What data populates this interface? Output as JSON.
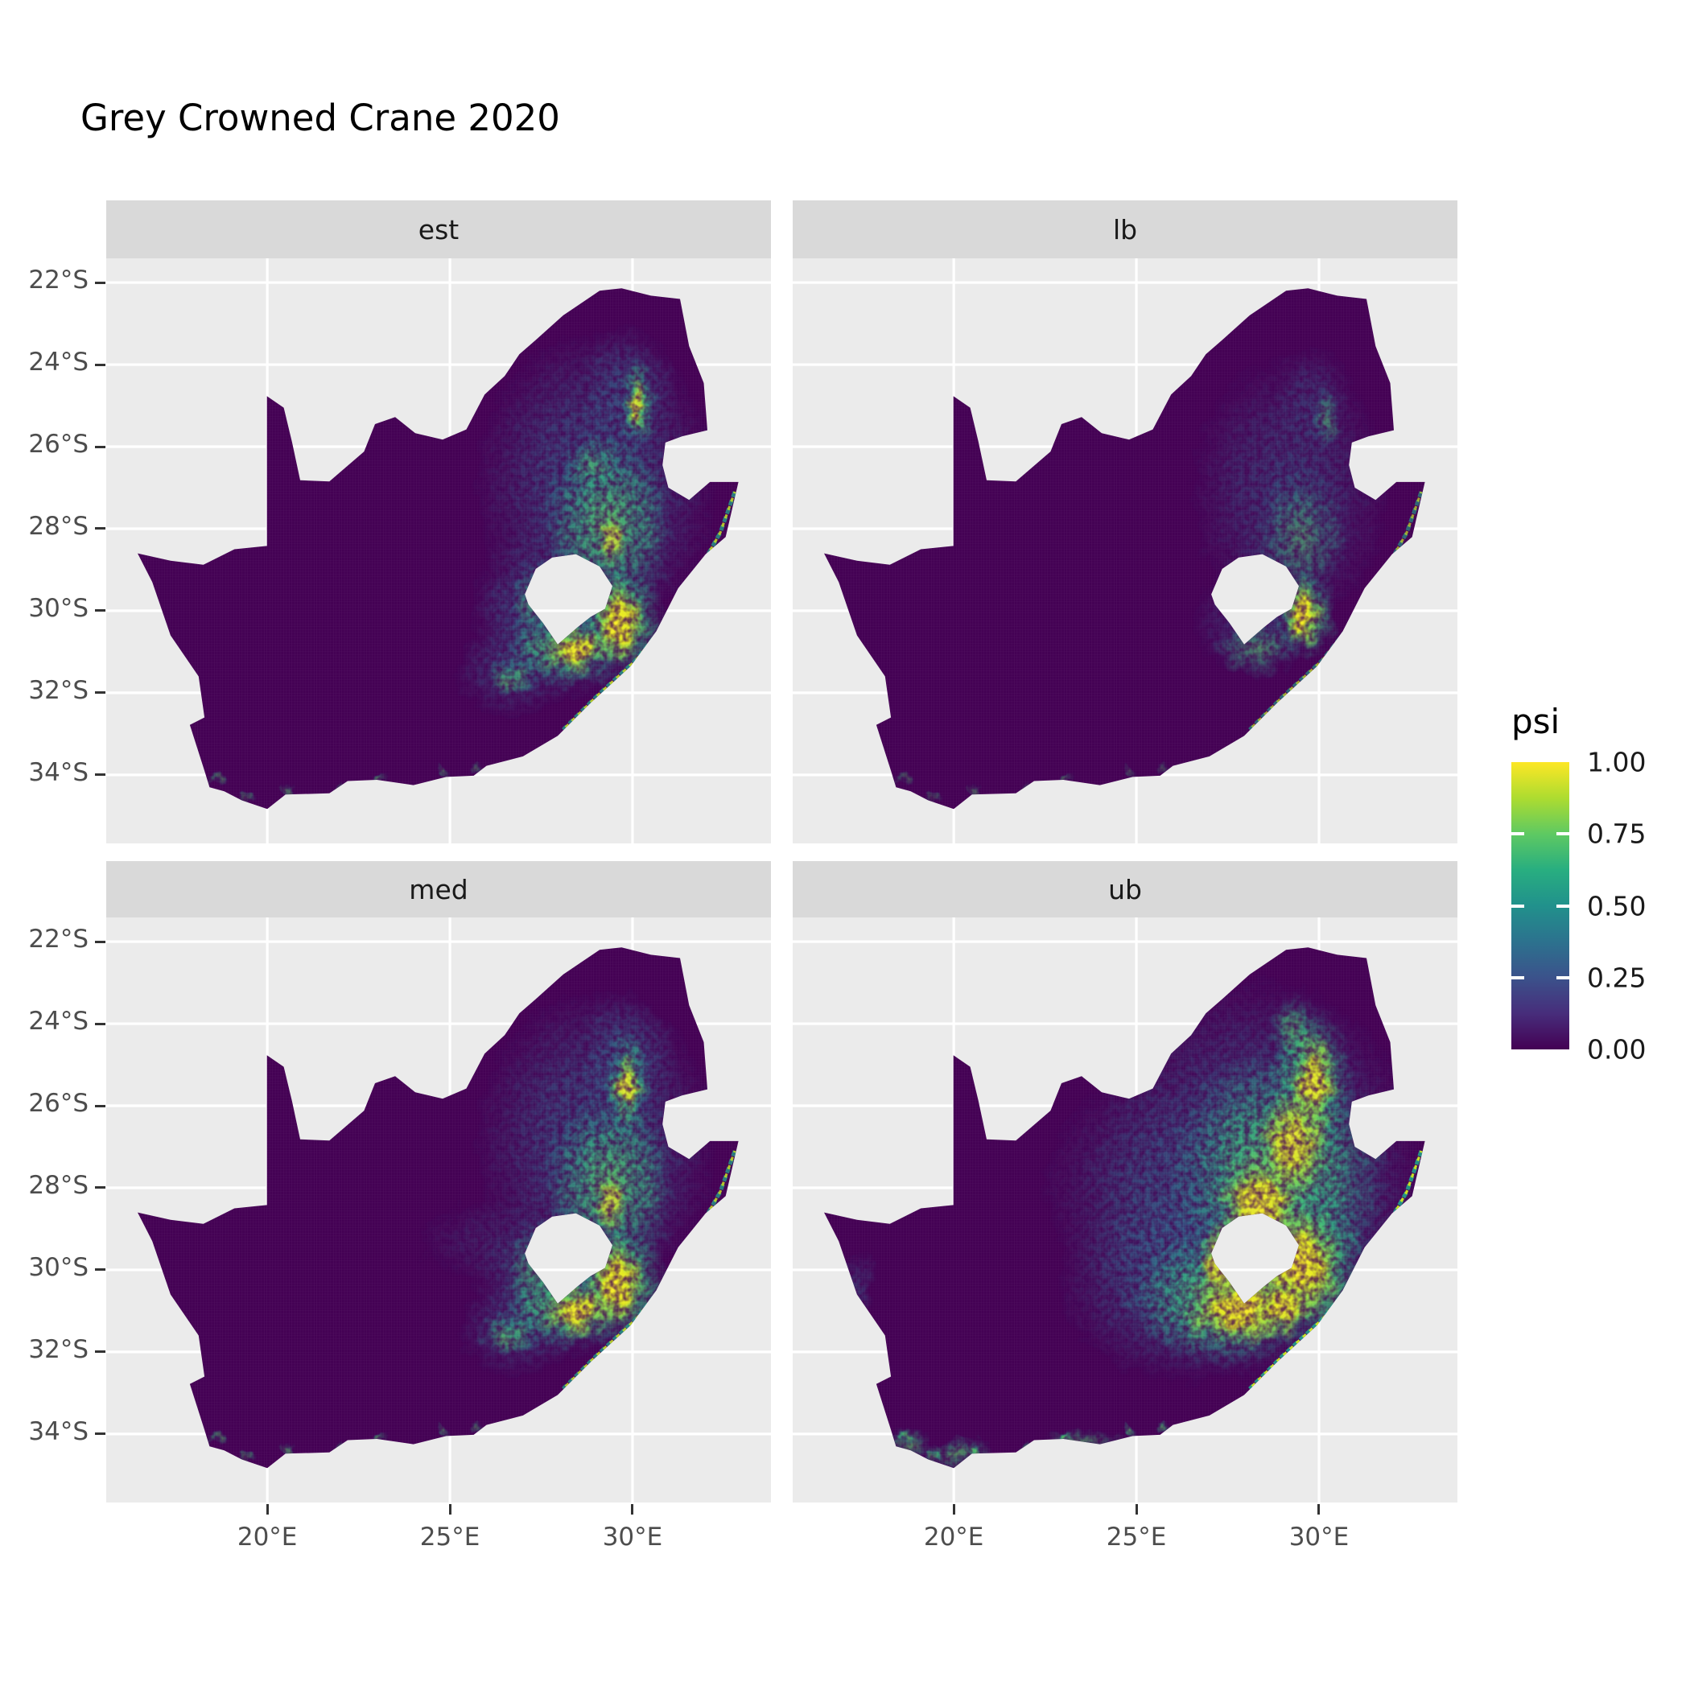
{
  "title": "Grey Crowned Crane 2020",
  "chart_data": {
    "type": "heatmap",
    "title": "Grey Crowned Crane 2020",
    "subtitle": "",
    "facets": [
      "est",
      "lb",
      "med",
      "ub"
    ],
    "legend": {
      "title": "psi",
      "position": "right",
      "tick_values": [
        1.0,
        0.75,
        0.5,
        0.25,
        0.0
      ],
      "tick_labels": [
        "1.00",
        "0.75",
        "0.50",
        "0.25",
        "0.00"
      ],
      "colormap": "viridis",
      "range": [
        0,
        1
      ]
    },
    "x_axis": {
      "tick_labels": [
        "20°E",
        "25°E",
        "30°E"
      ],
      "tick_values": [
        20,
        25,
        30
      ]
    },
    "y_axis": {
      "tick_labels": [
        "22°S",
        "24°S",
        "26°S",
        "28°S",
        "30°S",
        "32°S",
        "34°S"
      ],
      "tick_values": [
        -22,
        -24,
        -26,
        -28,
        -30,
        -32,
        -34
      ]
    },
    "extent": {
      "lon": [
        15.59,
        33.79
      ],
      "lat": [
        -35.67,
        -21.41
      ]
    },
    "grid": true,
    "colors": {
      "page_bg": "#FFFFFF",
      "panel_bg": "#EBEBEB",
      "strip_bg": "#D9D9D9",
      "gridline": "#FFFFFF",
      "raster_base": "#440154",
      "axis_text": "#4D4D4D",
      "strip_text": "#1A1A1A",
      "title_text": "#000000",
      "viridis_stops": [
        "#440154",
        "#472D7B",
        "#3B528B",
        "#2C728E",
        "#21918C",
        "#28AE80",
        "#5EC962",
        "#ADDC30",
        "#FDE725"
      ]
    },
    "map": {
      "region": "South Africa occupancy raster (psi), Lesotho and Eswatini shown as holes",
      "outline_lonlat": [
        [
          16.45,
          -28.6
        ],
        [
          17.35,
          -28.78
        ],
        [
          18.25,
          -28.88
        ],
        [
          19.1,
          -28.5
        ],
        [
          19.99,
          -28.42
        ],
        [
          19.99,
          -24.77
        ],
        [
          20.45,
          -25.05
        ],
        [
          20.68,
          -25.9
        ],
        [
          20.9,
          -26.82
        ],
        [
          21.7,
          -26.85
        ],
        [
          22.65,
          -26.12
        ],
        [
          22.95,
          -25.45
        ],
        [
          23.5,
          -25.28
        ],
        [
          24.05,
          -25.67
        ],
        [
          24.8,
          -25.83
        ],
        [
          25.45,
          -25.58
        ],
        [
          25.95,
          -24.73
        ],
        [
          26.5,
          -24.28
        ],
        [
          26.9,
          -23.75
        ],
        [
          27.35,
          -23.4
        ],
        [
          28.1,
          -22.8
        ],
        [
          29.1,
          -22.2
        ],
        [
          29.7,
          -22.14
        ],
        [
          30.5,
          -22.32
        ],
        [
          31.3,
          -22.4
        ],
        [
          31.55,
          -23.55
        ],
        [
          31.95,
          -24.45
        ],
        [
          32.05,
          -25.6
        ],
        [
          31.35,
          -25.75
        ],
        [
          30.9,
          -25.9
        ],
        [
          30.82,
          -26.45
        ],
        [
          30.98,
          -27.0
        ],
        [
          31.55,
          -27.3
        ],
        [
          32.12,
          -26.86
        ],
        [
          32.9,
          -26.86
        ],
        [
          32.55,
          -28.2
        ],
        [
          32.0,
          -28.62
        ],
        [
          31.25,
          -29.45
        ],
        [
          30.65,
          -30.5
        ],
        [
          29.95,
          -31.35
        ],
        [
          28.85,
          -32.25
        ],
        [
          27.95,
          -33.05
        ],
        [
          27.0,
          -33.55
        ],
        [
          26.0,
          -33.78
        ],
        [
          25.65,
          -34.02
        ],
        [
          24.9,
          -34.05
        ],
        [
          24.0,
          -34.25
        ],
        [
          23.0,
          -34.12
        ],
        [
          22.2,
          -34.15
        ],
        [
          21.7,
          -34.45
        ],
        [
          20.5,
          -34.48
        ],
        [
          20.0,
          -34.83
        ],
        [
          19.3,
          -34.62
        ],
        [
          18.82,
          -34.4
        ],
        [
          18.42,
          -34.3
        ],
        [
          18.28,
          -33.9
        ],
        [
          17.88,
          -32.78
        ],
        [
          18.28,
          -32.6
        ],
        [
          18.12,
          -31.6
        ],
        [
          17.35,
          -30.6
        ],
        [
          16.85,
          -29.3
        ]
      ],
      "lesotho_hole_lonlat": [
        [
          27.05,
          -29.6
        ],
        [
          27.35,
          -28.98
        ],
        [
          27.8,
          -28.7
        ],
        [
          28.45,
          -28.62
        ],
        [
          29.1,
          -28.92
        ],
        [
          29.45,
          -29.4
        ],
        [
          29.25,
          -29.95
        ],
        [
          28.85,
          -30.15
        ],
        [
          28.5,
          -30.4
        ],
        [
          27.95,
          -30.82
        ],
        [
          27.55,
          -30.3
        ],
        [
          27.15,
          -29.85
        ]
      ],
      "coast_highlight_lonlat": [
        [
          32.8,
          -27.1
        ],
        [
          32.4,
          -28.1
        ],
        [
          31.7,
          -29.2
        ],
        [
          30.9,
          -30.3
        ],
        [
          30.1,
          -31.2
        ],
        [
          29.0,
          -32.1
        ],
        [
          28.1,
          -32.9
        ]
      ],
      "coast_opacity": {
        "est": 0.85,
        "lb": 0.7,
        "med": 0.85,
        "ub": 1.0
      },
      "speck_opacity": {
        "est": 0.5,
        "lb": 0.4,
        "med": 0.55,
        "ub": 0.8
      },
      "south_coast_specks_lonlat": [
        [
          19.45,
          -34.55
        ],
        [
          20.6,
          -34.4
        ],
        [
          21.9,
          -34.35
        ],
        [
          23.1,
          -34.1
        ],
        [
          24.8,
          -33.95
        ],
        [
          25.7,
          -33.85
        ],
        [
          18.6,
          -34.1
        ]
      ],
      "hotspots": {
        "est": [
          [
            29.0,
            -26.9,
            2.3,
            2.6,
            "t",
            0.75
          ],
          [
            28.2,
            -30.4,
            1.8,
            1.2,
            "t",
            0.7
          ],
          [
            29.9,
            -24.6,
            0.9,
            1.1,
            "t",
            0.5
          ],
          [
            26.7,
            -31.5,
            1.1,
            0.8,
            "t",
            0.5
          ],
          [
            27.2,
            -29.6,
            1.1,
            1.0,
            "t",
            0.45
          ],
          [
            29.35,
            -27.9,
            1.3,
            1.5,
            "g",
            0.8
          ],
          [
            29.7,
            -30.2,
            0.85,
            1.0,
            "g",
            0.9
          ],
          [
            28.1,
            -30.9,
            1.2,
            0.7,
            "g",
            0.8
          ],
          [
            30.15,
            -24.9,
            0.35,
            0.8,
            "g",
            0.8
          ],
          [
            28.9,
            -26.4,
            0.6,
            0.5,
            "g",
            0.5
          ],
          [
            26.65,
            -31.65,
            0.5,
            0.35,
            "g",
            0.7
          ],
          [
            27.35,
            -29.75,
            0.5,
            0.6,
            "g",
            0.45
          ],
          [
            29.62,
            -30.35,
            0.5,
            0.75,
            "y",
            0.95
          ],
          [
            28.45,
            -30.95,
            0.6,
            0.4,
            "y",
            0.9
          ],
          [
            29.4,
            -28.3,
            0.3,
            0.45,
            "y",
            0.6
          ],
          [
            30.1,
            -25.0,
            0.18,
            0.5,
            "y",
            0.75
          ]
        ],
        "lb": [
          [
            29.2,
            -27.1,
            1.9,
            2.3,
            "t",
            0.55
          ],
          [
            28.3,
            -30.3,
            1.3,
            0.9,
            "t",
            0.45
          ],
          [
            29.9,
            -24.8,
            0.7,
            0.9,
            "t",
            0.35
          ],
          [
            29.5,
            -28.2,
            0.9,
            1.1,
            "g",
            0.5
          ],
          [
            29.65,
            -30.1,
            0.6,
            0.8,
            "g",
            0.8
          ],
          [
            28.3,
            -30.9,
            0.8,
            0.5,
            "g",
            0.55
          ],
          [
            30.2,
            -25.3,
            0.25,
            0.6,
            "g",
            0.5
          ],
          [
            29.55,
            -30.15,
            0.35,
            0.6,
            "y",
            0.95
          ]
        ],
        "med": [
          [
            29.0,
            -26.9,
            2.3,
            2.6,
            "t",
            0.75
          ],
          [
            28.2,
            -30.4,
            1.8,
            1.2,
            "t",
            0.7
          ],
          [
            29.85,
            -24.8,
            0.9,
            1.1,
            "t",
            0.55
          ],
          [
            26.8,
            -31.5,
            1.1,
            0.8,
            "t",
            0.5
          ],
          [
            26.3,
            -29.3,
            1.5,
            0.7,
            "t",
            0.3
          ],
          [
            29.4,
            -27.9,
            1.3,
            1.5,
            "g",
            0.8
          ],
          [
            29.7,
            -30.25,
            0.9,
            1.05,
            "g",
            0.9
          ],
          [
            28.05,
            -30.9,
            1.25,
            0.75,
            "g",
            0.8
          ],
          [
            29.85,
            -25.45,
            0.45,
            0.9,
            "g",
            0.85
          ],
          [
            27.5,
            -30.0,
            0.8,
            0.8,
            "g",
            0.55
          ],
          [
            26.6,
            -31.6,
            0.55,
            0.4,
            "g",
            0.75
          ],
          [
            29.55,
            -30.4,
            0.55,
            0.8,
            "y",
            0.95
          ],
          [
            28.5,
            -31.0,
            0.65,
            0.45,
            "y",
            0.9
          ],
          [
            29.85,
            -25.5,
            0.25,
            0.6,
            "y",
            0.8
          ],
          [
            29.35,
            -28.4,
            0.35,
            0.5,
            "y",
            0.65
          ]
        ],
        "ub": [
          [
            28.3,
            -27.8,
            3.2,
            3.4,
            "t",
            0.85
          ],
          [
            26.3,
            -30.3,
            2.4,
            1.7,
            "t",
            0.75
          ],
          [
            25.0,
            -28.0,
            1.8,
            1.8,
            "t",
            0.4
          ],
          [
            17.35,
            -30.4,
            0.35,
            0.6,
            "t",
            0.45
          ],
          [
            28.9,
            -27.7,
            2.1,
            2.2,
            "g",
            0.9
          ],
          [
            27.3,
            -30.7,
            1.8,
            1.2,
            "g",
            0.85
          ],
          [
            29.9,
            -29.9,
            1.0,
            1.4,
            "g",
            0.9
          ],
          [
            29.8,
            -25.4,
            0.8,
            1.3,
            "g",
            0.85
          ],
          [
            29.35,
            -24.2,
            0.5,
            0.6,
            "g",
            0.65
          ],
          [
            20.1,
            -34.5,
            0.7,
            0.3,
            "g",
            0.65
          ],
          [
            18.8,
            -34.25,
            0.4,
            0.3,
            "g",
            0.6
          ],
          [
            23.5,
            -34.2,
            0.8,
            0.25,
            "g",
            0.5
          ],
          [
            29.45,
            -29.9,
            0.85,
            1.05,
            "y",
            0.95
          ],
          [
            27.9,
            -30.95,
            1.15,
            0.65,
            "y",
            0.95
          ],
          [
            28.35,
            -28.4,
            0.8,
            0.85,
            "y",
            0.9
          ],
          [
            29.3,
            -26.9,
            0.7,
            0.95,
            "y",
            0.85
          ],
          [
            29.85,
            -25.4,
            0.45,
            0.85,
            "y",
            0.85
          ],
          [
            27.35,
            -29.8,
            0.45,
            0.7,
            "y",
            0.8
          ],
          [
            29.0,
            -30.9,
            0.6,
            0.5,
            "y",
            0.85
          ]
        ]
      }
    }
  }
}
